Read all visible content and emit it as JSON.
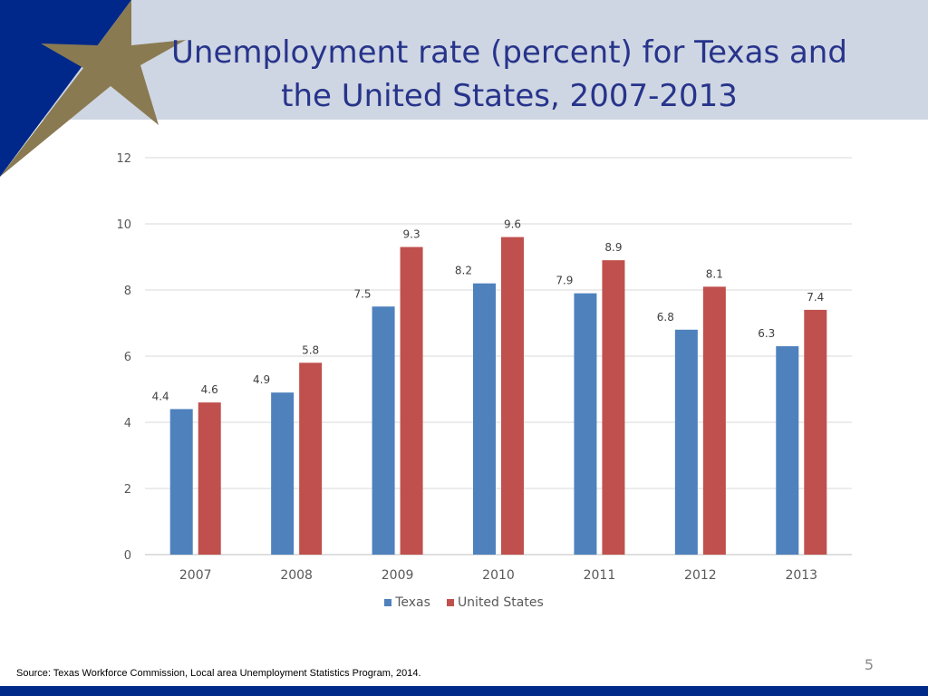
{
  "slide": {
    "title_line1": "Unemployment rate (percent) for Texas and",
    "title_line2": "the United States, 2007-2013",
    "slide_number": "5",
    "source": "Source: Texas Workforce Commission, Local area Unemployment Statistics Program, 2014."
  },
  "colors": {
    "header_band": "#cfd6e3",
    "title": "#27348b",
    "corner_blue": "#00288a",
    "star_gold": "#8a7a52",
    "footer": "#002a8a",
    "texas": "#4f81bd",
    "united_states": "#c0504d"
  },
  "chart_data": {
    "type": "bar",
    "categories": [
      "2007",
      "2008",
      "2009",
      "2010",
      "2011",
      "2012",
      "2013"
    ],
    "series": [
      {
        "name": "Texas",
        "values": [
          4.4,
          4.9,
          7.5,
          8.2,
          7.9,
          6.8,
          6.3
        ]
      },
      {
        "name": "United States",
        "values": [
          4.6,
          5.8,
          9.3,
          9.6,
          8.9,
          8.1,
          7.4
        ]
      }
    ],
    "ylim": [
      0,
      12
    ],
    "yticks": [
      0,
      2,
      4,
      6,
      8,
      10,
      12
    ],
    "grid": true,
    "legend": "bottom",
    "data_labels": true
  }
}
